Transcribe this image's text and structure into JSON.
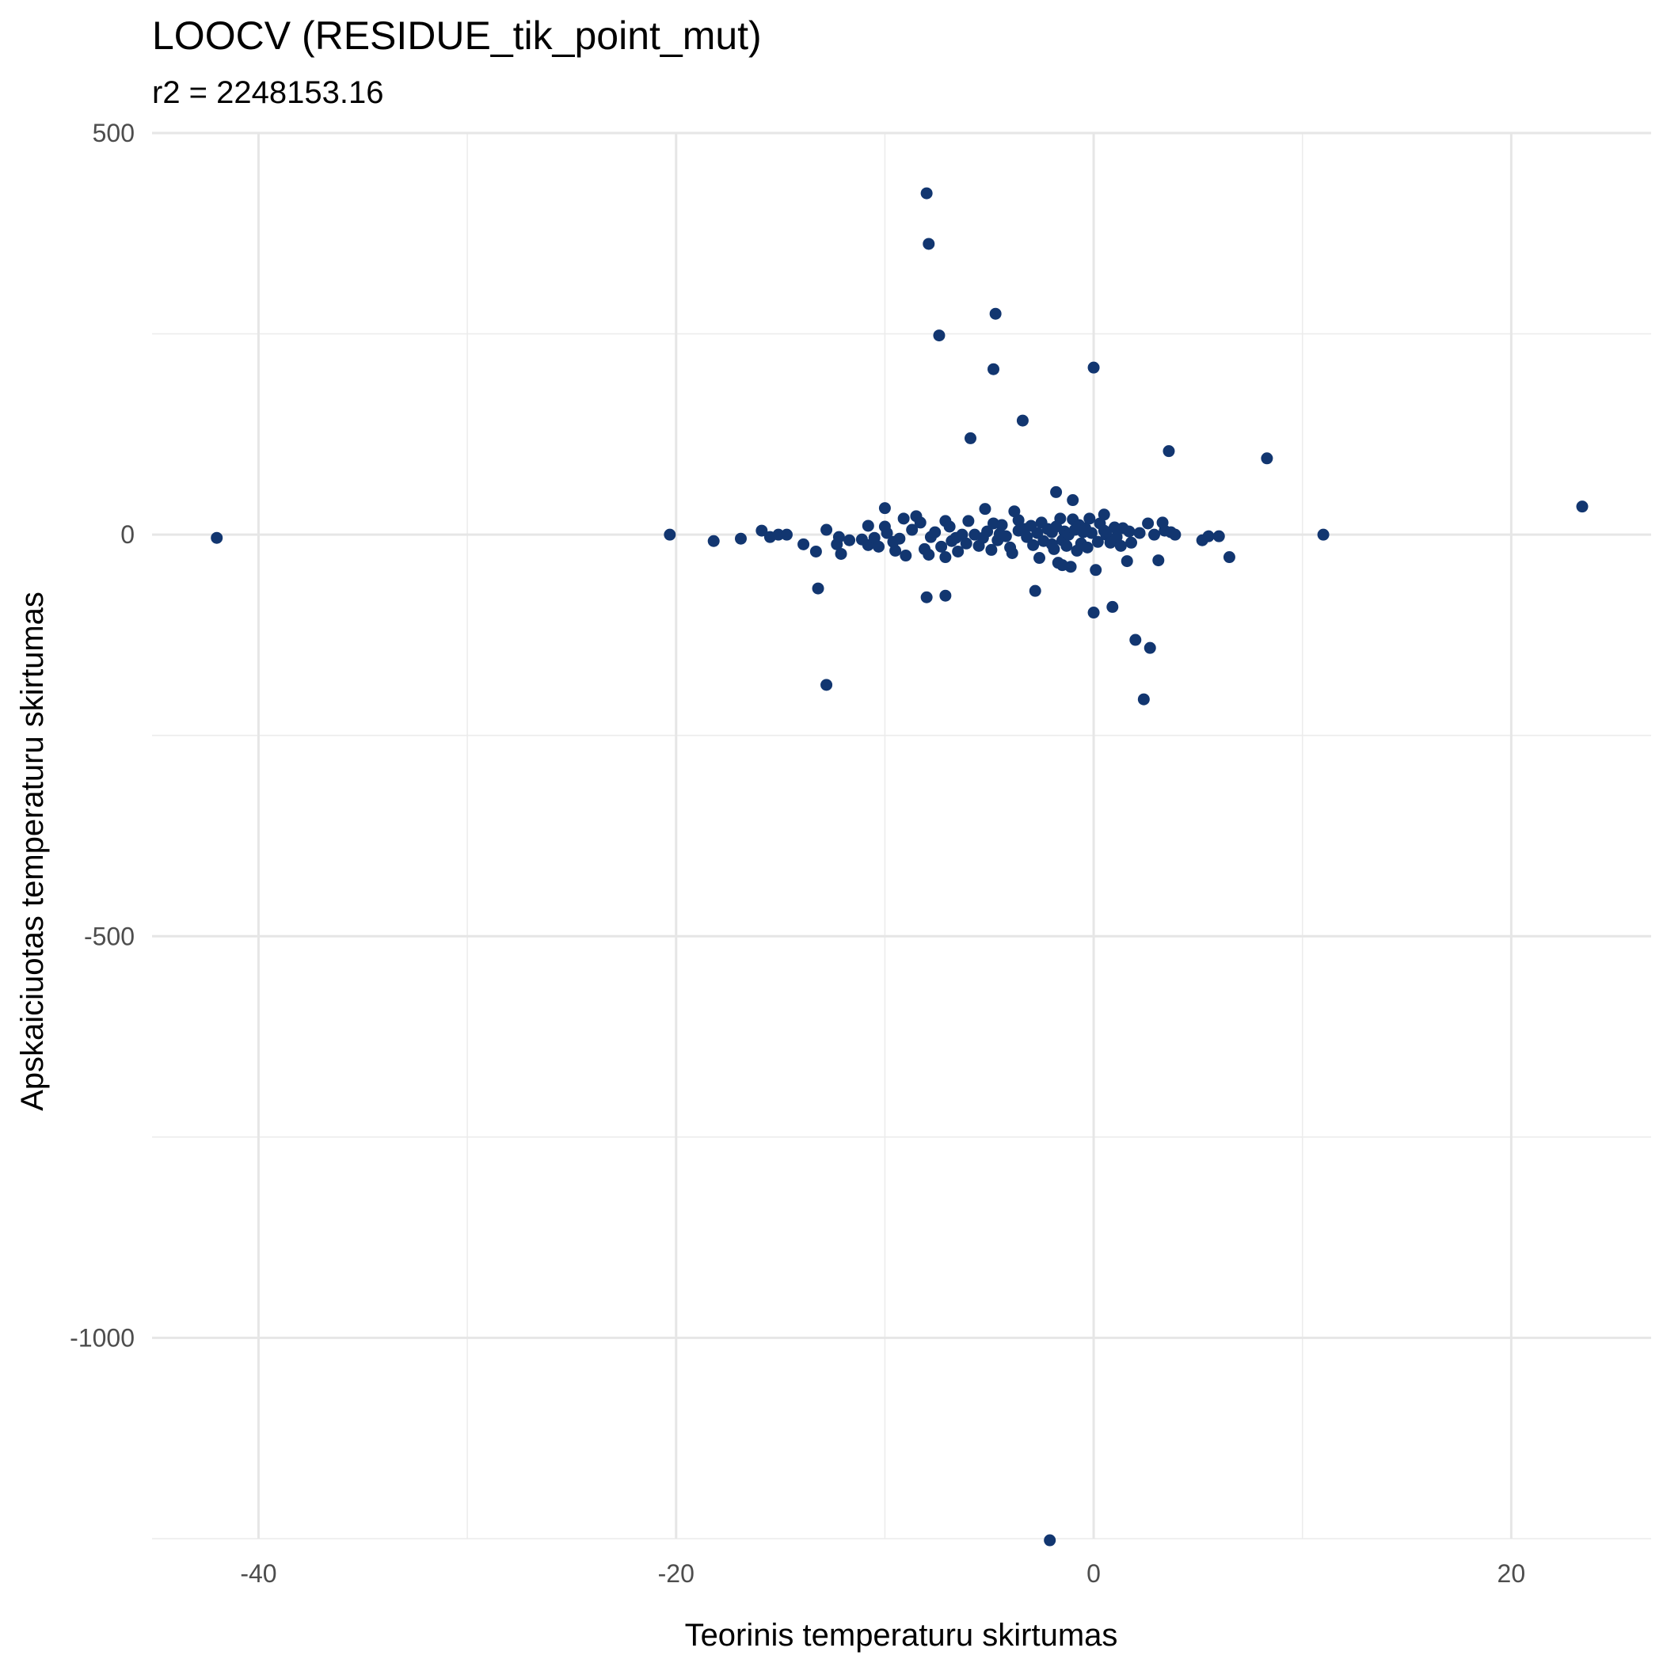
{
  "chart_data": {
    "type": "scatter",
    "title": "LOOCV (RESIDUE_tik_point_mut)",
    "subtitle": "r2 = 2248153.16",
    "xlabel": "Teorinis temperaturu skirtumas",
    "ylabel": "Apskaiciuotas temperaturu skirtumas",
    "xlim": [
      -45.1,
      26.7
    ],
    "ylim": [
      -1250,
      500
    ],
    "xticks": [
      -40,
      -20,
      0,
      20
    ],
    "xtick_labels": [
      "-40",
      "-20",
      "0",
      "20"
    ],
    "xminor": [
      -30,
      -10,
      10
    ],
    "yticks": [
      500,
      0,
      -500,
      -1000
    ],
    "ytick_labels": [
      "500",
      "0",
      "-500",
      "-1000"
    ],
    "yminor": [
      250,
      -250,
      -750,
      -1250
    ],
    "grid": true,
    "legend": "none",
    "point_color": "#123670",
    "points": [
      [
        -42.0,
        -4
      ],
      [
        -20.3,
        0
      ],
      [
        -18.2,
        -8
      ],
      [
        -16.9,
        -5
      ],
      [
        -15.9,
        5
      ],
      [
        -15.5,
        -3
      ],
      [
        -15.1,
        0
      ],
      [
        -14.7,
        0
      ],
      [
        -13.9,
        -12
      ],
      [
        -13.3,
        -21
      ],
      [
        -13.2,
        -67
      ],
      [
        -12.8,
        6
      ],
      [
        -12.8,
        -187
      ],
      [
        -12.3,
        -12
      ],
      [
        -12.2,
        -3
      ],
      [
        -12.1,
        -24
      ],
      [
        -11.7,
        -7
      ],
      [
        -11.1,
        -6
      ],
      [
        -10.8,
        11
      ],
      [
        -10.8,
        -13
      ],
      [
        -10.5,
        -4
      ],
      [
        -10.3,
        -15
      ],
      [
        -10.0,
        33
      ],
      [
        -10.0,
        10
      ],
      [
        -9.9,
        2
      ],
      [
        -9.6,
        -9
      ],
      [
        -9.5,
        -20
      ],
      [
        -9.3,
        -5
      ],
      [
        -9.1,
        20
      ],
      [
        -9.0,
        -26
      ],
      [
        -8.7,
        6
      ],
      [
        -8.5,
        23
      ],
      [
        -8.3,
        15
      ],
      [
        -8.1,
        -18
      ],
      [
        -8.0,
        425
      ],
      [
        -8.0,
        -78
      ],
      [
        -7.9,
        362
      ],
      [
        -7.9,
        -25
      ],
      [
        -7.8,
        -3
      ],
      [
        -7.6,
        3
      ],
      [
        -7.4,
        248
      ],
      [
        -7.3,
        -15
      ],
      [
        -7.1,
        -76
      ],
      [
        -7.1,
        17
      ],
      [
        -7.1,
        -28
      ],
      [
        -6.9,
        10
      ],
      [
        -6.8,
        -8
      ],
      [
        -6.6,
        -4
      ],
      [
        -6.5,
        -21
      ],
      [
        -6.3,
        0
      ],
      [
        -6.1,
        -11
      ],
      [
        -6.0,
        17
      ],
      [
        -5.9,
        120
      ],
      [
        -5.7,
        0
      ],
      [
        -5.5,
        -14
      ],
      [
        -5.3,
        -4
      ],
      [
        -5.2,
        32
      ],
      [
        -5.1,
        4
      ],
      [
        -4.9,
        -19
      ],
      [
        -4.8,
        206
      ],
      [
        -4.8,
        14
      ],
      [
        -4.7,
        275
      ],
      [
        -4.6,
        -7
      ],
      [
        -4.5,
        1
      ],
      [
        -4.4,
        12
      ],
      [
        -4.2,
        -2
      ],
      [
        -4.0,
        -16
      ],
      [
        -3.9,
        -23
      ],
      [
        -3.8,
        29
      ],
      [
        -3.6,
        18
      ],
      [
        -3.6,
        5
      ],
      [
        -3.4,
        142
      ],
      [
        -3.3,
        7
      ],
      [
        -3.2,
        -3
      ],
      [
        -3.0,
        11
      ],
      [
        -2.9,
        -13
      ],
      [
        -2.8,
        -70
      ],
      [
        -2.7,
        2
      ],
      [
        -2.6,
        -29
      ],
      [
        -2.5,
        15
      ],
      [
        -2.4,
        -8
      ],
      [
        -2.2,
        7
      ],
      [
        -2.1,
        -1252
      ],
      [
        -2.0,
        3
      ],
      [
        -2.0,
        -12
      ],
      [
        -1.9,
        -18
      ],
      [
        -1.8,
        53
      ],
      [
        -1.8,
        10
      ],
      [
        -1.7,
        -35
      ],
      [
        -1.6,
        20
      ],
      [
        -1.5,
        -7
      ],
      [
        -1.5,
        -38
      ],
      [
        -1.4,
        4
      ],
      [
        -1.3,
        -14
      ],
      [
        -1.2,
        0
      ],
      [
        -1.1,
        -40
      ],
      [
        -1.0,
        19
      ],
      [
        -1.0,
        43
      ],
      [
        -0.9,
        6
      ],
      [
        -0.8,
        -20
      ],
      [
        -0.7,
        12
      ],
      [
        -0.6,
        -11
      ],
      [
        -0.5,
        3
      ],
      [
        -0.4,
        8
      ],
      [
        -0.3,
        -16
      ],
      [
        -0.2,
        20
      ],
      [
        -0.1,
        2
      ],
      [
        0.0,
        208
      ],
      [
        0.0,
        -97
      ],
      [
        0.1,
        -44
      ],
      [
        0.2,
        -9
      ],
      [
        0.3,
        14
      ],
      [
        0.5,
        5
      ],
      [
        0.5,
        25
      ],
      [
        0.6,
        0
      ],
      [
        0.8,
        -10
      ],
      [
        0.9,
        -90
      ],
      [
        1.0,
        9
      ],
      [
        1.1,
        -3
      ],
      [
        1.3,
        -14
      ],
      [
        1.4,
        8
      ],
      [
        1.6,
        -33
      ],
      [
        1.7,
        4
      ],
      [
        1.8,
        -10
      ],
      [
        2.0,
        -131
      ],
      [
        2.2,
        2
      ],
      [
        2.4,
        -205
      ],
      [
        2.6,
        14
      ],
      [
        2.7,
        -141
      ],
      [
        2.9,
        0
      ],
      [
        3.1,
        -32
      ],
      [
        3.3,
        15
      ],
      [
        3.4,
        5
      ],
      [
        3.6,
        104
      ],
      [
        3.7,
        3
      ],
      [
        3.9,
        0
      ],
      [
        5.2,
        -7
      ],
      [
        5.5,
        -2
      ],
      [
        6.0,
        -2
      ],
      [
        6.5,
        -28
      ],
      [
        8.3,
        95
      ],
      [
        11.0,
        0
      ],
      [
        23.4,
        35
      ]
    ]
  }
}
